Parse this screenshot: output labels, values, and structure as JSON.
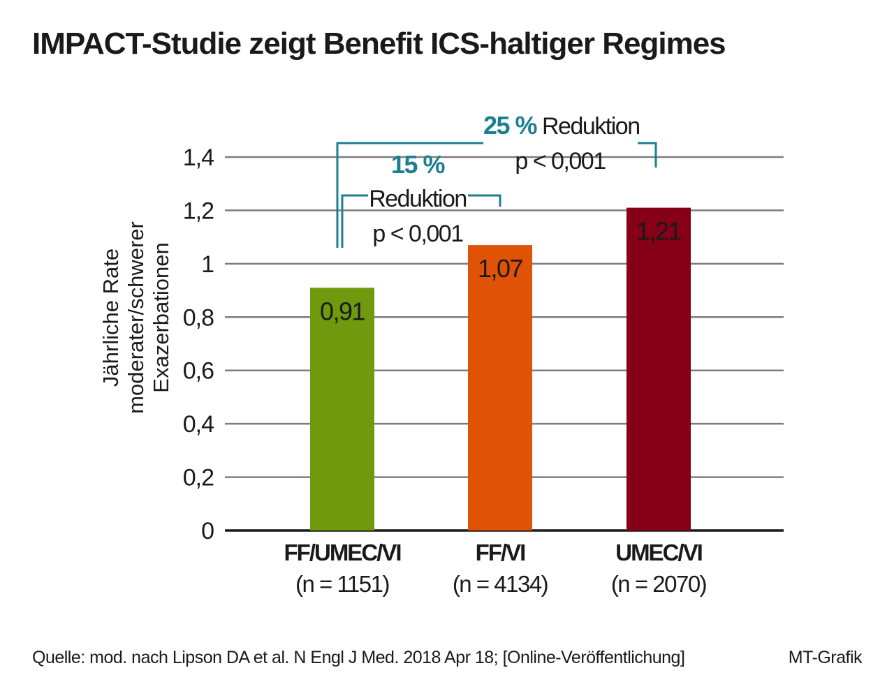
{
  "chart_data": {
    "type": "bar",
    "title": "IMPACT-Studie zeigt Benefit ICS-haltiger Regimes",
    "ylabel_lines": [
      "Jährliche Rate",
      "moderater/schwerer",
      "Exazerbationen"
    ],
    "xlabel": "",
    "categories": [
      "FF/UMEC/VI",
      "FF/VI",
      "UMEC/VI"
    ],
    "category_sublabels": [
      "(n = 1151)",
      "(n = 4134)",
      "(n = 2070)"
    ],
    "values": [
      0.91,
      1.07,
      1.21
    ],
    "value_labels": [
      "0,91",
      "1,07",
      "1,21"
    ],
    "bar_colors": [
      "#6f9a0e",
      "#e05206",
      "#860018"
    ],
    "ylim": [
      0,
      1.4
    ],
    "yticks": [
      0,
      0.2,
      0.4,
      0.6,
      0.8,
      1,
      1.2,
      1.4
    ],
    "ytick_labels": [
      "0",
      "0,2",
      "0,4",
      "0,6",
      "0,8",
      "1",
      "1,2",
      "1,4"
    ],
    "grid": true,
    "annotations": [
      {
        "pct": "15 %",
        "text": "Reduktion",
        "pvalue": "p < 0,001",
        "from": "FF/UMEC/VI",
        "to": "FF/VI"
      },
      {
        "pct": "25 %",
        "text": "Reduktion",
        "pvalue": "p < 0,001",
        "from": "FF/UMEC/VI",
        "to": "UMEC/VI"
      }
    ],
    "annotation_color": "#1c7f8f"
  },
  "footer": {
    "source": "Quelle: mod. nach Lipson DA et al. N Engl J Med. 2018 Apr 18; [Online-Veröffentlichung]",
    "credit": "MT-Grafik"
  }
}
